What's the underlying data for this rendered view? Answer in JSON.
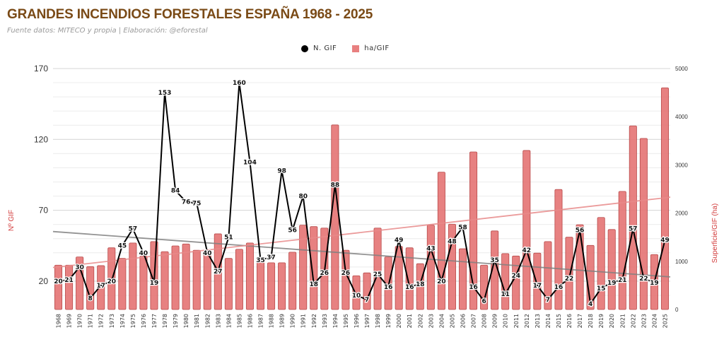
{
  "chart_data": {
    "type": "bar+line",
    "title": "GRANDES INCENDIOS FORESTALES ESPAÑA 1968 - 2025",
    "subtitle": "Fuente datos: MITECO y propia | Elaboración: @eforestal",
    "ylabel_left": "Nº GIF",
    "ylabel_right": "Superficie/GIF (ha)",
    "xlabel": "",
    "legend_position": "top-center",
    "grid": true,
    "ylim_left": [
      0,
      170
    ],
    "yticks_left": [
      20,
      70,
      120,
      170
    ],
    "ylim_right": [
      0,
      5000
    ],
    "yticks_right": [
      0,
      1000,
      2000,
      3000,
      4000,
      5000
    ],
    "categories": [
      "1968",
      "1969",
      "1970",
      "1971",
      "1972",
      "1973",
      "1974",
      "1975",
      "1976",
      "1977",
      "1978",
      "1979",
      "1980",
      "1981",
      "1982",
      "1983",
      "1984",
      "1985",
      "1986",
      "1987",
      "1988",
      "1989",
      "1990",
      "1991",
      "1992",
      "1993",
      "1994",
      "1995",
      "1996",
      "1997",
      "1998",
      "1999",
      "2000",
      "2001",
      "2002",
      "2003",
      "2004",
      "2005",
      "2006",
      "2007",
      "2008",
      "2009",
      "2010",
      "2011",
      "2012",
      "2013",
      "2014",
      "2015",
      "2016",
      "2017",
      "2018",
      "2019",
      "2020",
      "2021",
      "2022",
      "2023",
      "2024",
      "2025"
    ],
    "series": [
      {
        "name": "N. GIF",
        "type": "line",
        "axis": "left",
        "color": "#000000",
        "values": [
          20,
          21,
          30,
          8,
          17,
          20,
          45,
          57,
          40,
          19,
          153,
          84,
          76,
          75,
          40,
          27,
          51,
          160,
          104,
          35,
          37,
          98,
          56,
          80,
          18,
          26,
          88,
          26,
          10,
          7,
          25,
          16,
          49,
          16,
          18,
          43,
          20,
          48,
          58,
          16,
          6,
          35,
          11,
          24,
          42,
          17,
          7,
          16,
          22,
          56,
          4,
          15,
          19,
          21,
          57,
          22,
          19,
          49
        ]
      },
      {
        "name": "ha/GIF",
        "type": "bar",
        "axis": "right",
        "color": "#e47373",
        "values": [
          920,
          920,
          1090,
          890,
          910,
          1280,
          1060,
          1380,
          1110,
          1410,
          1200,
          1320,
          1360,
          1230,
          1170,
          1570,
          1060,
          1250,
          1380,
          980,
          970,
          970,
          1190,
          1750,
          1720,
          1690,
          3830,
          1230,
          700,
          760,
          1690,
          1090,
          1310,
          1280,
          950,
          1750,
          2850,
          1770,
          1260,
          3270,
          920,
          1630,
          1160,
          1110,
          3300,
          1170,
          1410,
          2490,
          1500,
          1760,
          1330,
          1910,
          1660,
          2450,
          3810,
          3550,
          1140,
          4600
        ]
      }
    ],
    "trendlines": [
      {
        "name": "N. GIF trend",
        "axis": "left",
        "color": "#808080",
        "start": 55,
        "end": 23
      },
      {
        "name": "ha/GIF trend",
        "axis": "right",
        "color": "#e88a8a",
        "start": 870,
        "end": 2330
      }
    ],
    "legend": [
      {
        "label": "N. GIF",
        "symbol": "circle",
        "color": "#000000"
      },
      {
        "label": "ha/GIF",
        "symbol": "square",
        "color": "#e88080"
      }
    ]
  }
}
